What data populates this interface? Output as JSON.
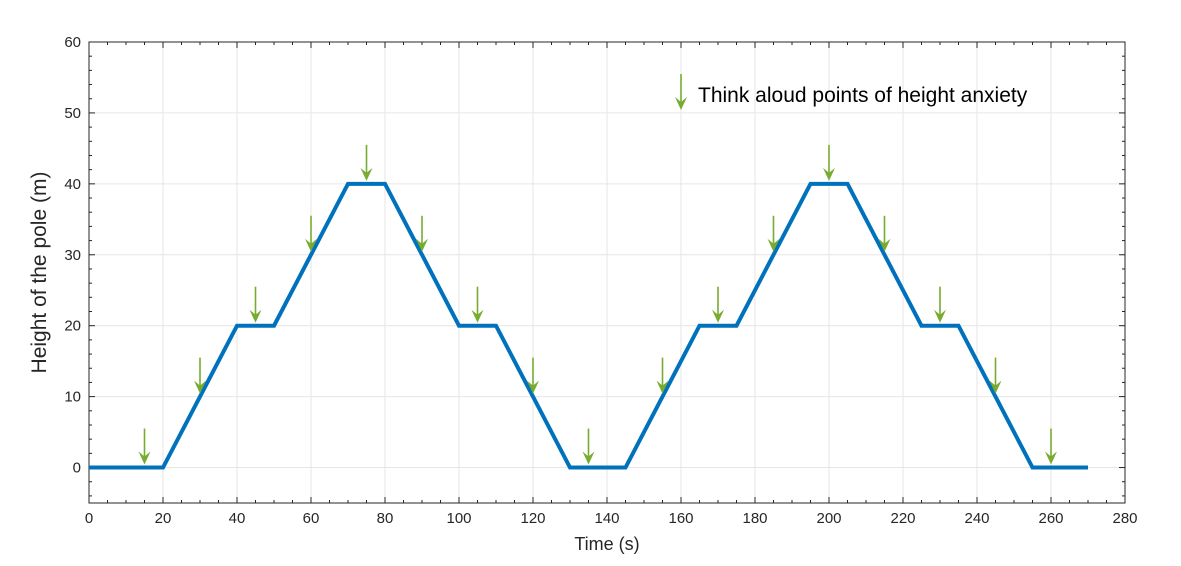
{
  "chart_data": {
    "type": "line",
    "title": "",
    "xlabel": "Time (s)",
    "ylabel": "Height of the pole (m)",
    "xlim": [
      0,
      280
    ],
    "ylim": [
      -5,
      60
    ],
    "xticks": [
      0,
      20,
      40,
      60,
      80,
      100,
      120,
      140,
      160,
      180,
      200,
      220,
      240,
      260,
      280
    ],
    "yticks": [
      0,
      10,
      20,
      30,
      40,
      50,
      60
    ],
    "xtick_labels": [
      "0",
      "20",
      "40",
      "60",
      "80",
      "100",
      "120",
      "140",
      "160",
      "180",
      "200",
      "220",
      "240",
      "260",
      "280"
    ],
    "ytick_labels": [
      "0",
      "10",
      "20",
      "30",
      "40",
      "50",
      "60"
    ],
    "grid": true,
    "series": [
      {
        "color": "#0072BD",
        "x": [
          0,
          20,
          40,
          50,
          70,
          80,
          100,
          110,
          130,
          145,
          165,
          175,
          195,
          205,
          225,
          235,
          255,
          270
        ],
        "y": [
          0,
          0,
          20,
          20,
          40,
          40,
          20,
          20,
          0,
          0,
          20,
          20,
          40,
          40,
          20,
          20,
          0,
          0
        ]
      }
    ],
    "markers": {
      "name": "Think aloud points of height anxiety",
      "color": "#77AC30",
      "symbol": "down-arrow",
      "x": [
        15,
        30,
        45,
        60,
        75,
        90,
        105,
        120,
        135,
        155,
        170,
        185,
        200,
        215,
        230,
        245,
        260
      ],
      "y": [
        0,
        10,
        20,
        30,
        40,
        30,
        20,
        10,
        0,
        10,
        20,
        30,
        40,
        30,
        20,
        10,
        0
      ]
    },
    "legend": {
      "label": "Think aloud points of height anxiety",
      "location": "top-right"
    }
  }
}
